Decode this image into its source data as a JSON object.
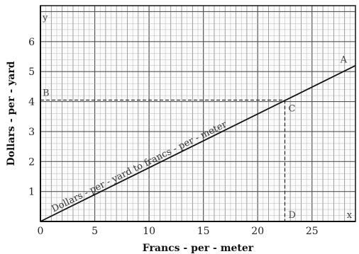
{
  "chart_data": {
    "type": "line",
    "xlabel": "Francs - per - meter",
    "ylabel": "Dollars - per - yard",
    "xlim": [
      0,
      29
    ],
    "ylim": [
      0,
      7.2
    ],
    "x_ticks": [
      0,
      5,
      10,
      15,
      20,
      25
    ],
    "y_ticks": [
      1,
      2,
      3,
      4,
      5,
      6
    ],
    "x_tick_labels": [
      "0",
      "5",
      "10",
      "15",
      "20",
      "25"
    ],
    "y_tick_labels": [
      "1",
      "2",
      "3",
      "4",
      "5",
      "6"
    ],
    "grid": true,
    "series": [
      {
        "name": "Dollars - per - yard to francs - per - meter",
        "x": [
          0,
          29
        ],
        "y": [
          0,
          5.2
        ]
      }
    ],
    "reference_point": {
      "x": 22.5,
      "y": 4.05
    },
    "annotations": {
      "y_axis": "y",
      "x_axis": "x",
      "point_A": "A",
      "point_B": "B",
      "point_C": "C",
      "point_D": "D"
    }
  }
}
